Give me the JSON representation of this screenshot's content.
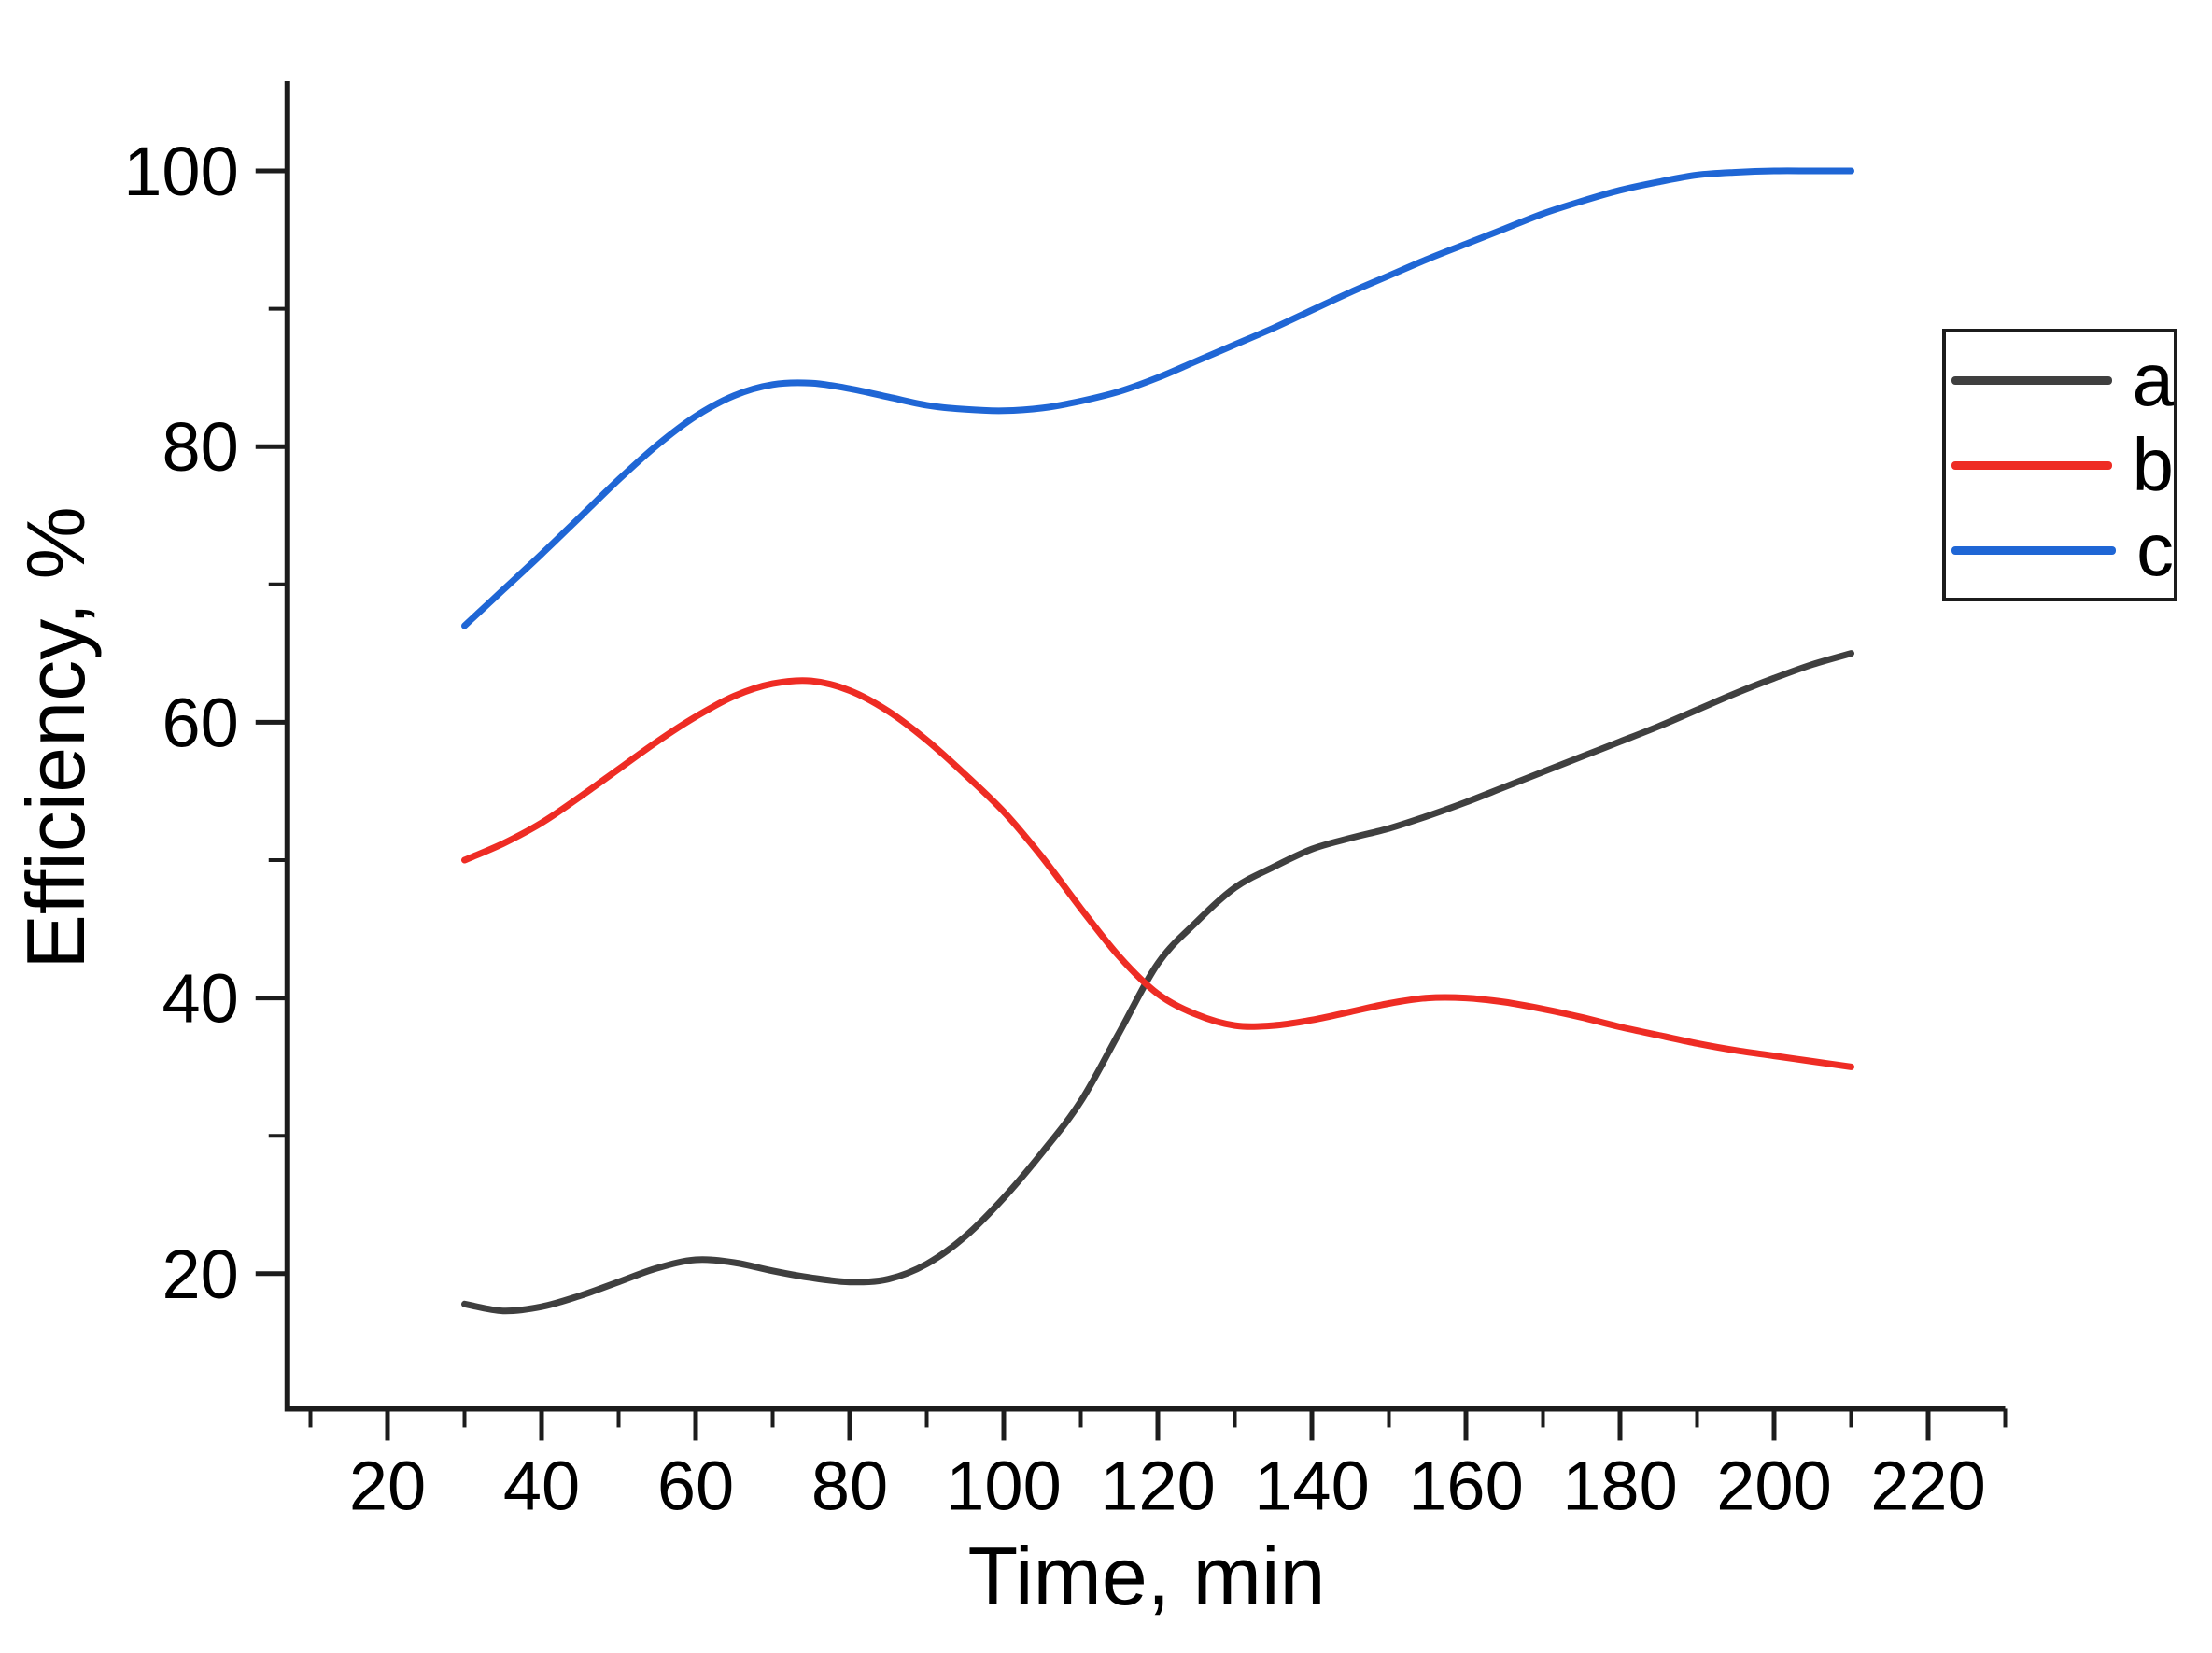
{
  "chart_data": {
    "type": "line",
    "title": "",
    "xlabel": "Time, min",
    "ylabel": "Efficiency, %",
    "xlim": [
      7,
      230
    ],
    "ylim": [
      10.2,
      106.5
    ],
    "x_major_ticks": [
      20,
      40,
      60,
      80,
      100,
      120,
      140,
      160,
      180,
      200,
      220
    ],
    "x_minor_ticks": [
      10,
      30,
      50,
      70,
      90,
      110,
      130,
      150,
      170,
      190,
      210,
      230
    ],
    "y_major_ticks": [
      20,
      40,
      60,
      80,
      100
    ],
    "y_minor_ticks": [
      30,
      50,
      70,
      90
    ],
    "grid": false,
    "legend_position": "upper right",
    "axis_color": "#1c1c1c",
    "x": [
      30,
      35,
      40,
      45,
      50,
      55,
      60,
      65,
      70,
      75,
      80,
      85,
      90,
      95,
      100,
      105,
      110,
      115,
      120,
      125,
      130,
      135,
      140,
      145,
      150,
      155,
      160,
      165,
      170,
      175,
      180,
      185,
      190,
      195,
      200,
      205,
      210
    ],
    "series": [
      {
        "name": "a",
        "color": "#3f3f3f",
        "values": [
          17.8,
          17.3,
          17.6,
          18.4,
          19.4,
          20.4,
          21.0,
          20.8,
          20.2,
          19.7,
          19.4,
          19.6,
          20.7,
          22.7,
          25.5,
          28.8,
          32.5,
          37.5,
          42.5,
          45.5,
          48.0,
          49.5,
          50.8,
          51.6,
          52.3,
          53.2,
          54.2,
          55.3,
          56.4,
          57.5,
          58.6,
          59.7,
          60.9,
          62.1,
          63.2,
          64.2,
          65.0
        ]
      },
      {
        "name": "b",
        "color": "#ee2c24",
        "values": [
          50.0,
          51.2,
          52.7,
          54.6,
          56.6,
          58.6,
          60.4,
          61.9,
          62.8,
          63.0,
          62.3,
          60.8,
          58.7,
          56.2,
          53.5,
          50.2,
          46.5,
          43.0,
          40.3,
          38.8,
          38.0,
          38.0,
          38.4,
          39.0,
          39.6,
          40.0,
          40.0,
          39.7,
          39.2,
          38.6,
          37.9,
          37.3,
          36.7,
          36.2,
          35.8,
          35.4,
          35.0
        ]
      },
      {
        "name": "c",
        "color": "#1f66d5",
        "values": [
          67.0,
          69.6,
          72.2,
          74.9,
          77.6,
          80.1,
          82.2,
          83.7,
          84.5,
          84.6,
          84.2,
          83.6,
          83.0,
          82.7,
          82.6,
          82.8,
          83.3,
          84.0,
          85.0,
          86.2,
          87.4,
          88.6,
          89.9,
          91.2,
          92.4,
          93.6,
          94.7,
          95.8,
          96.9,
          97.8,
          98.6,
          99.2,
          99.7,
          99.9,
          100.0,
          100.0,
          100.0
        ]
      }
    ]
  }
}
